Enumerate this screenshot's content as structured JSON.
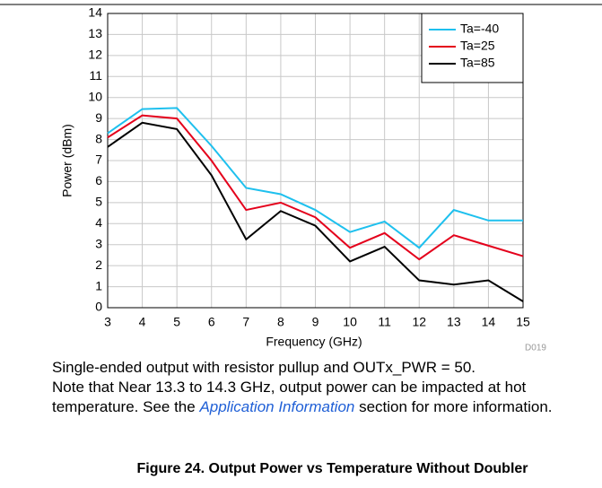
{
  "chart_data": {
    "type": "line",
    "xlabel": "Frequency (GHz)",
    "ylabel": "Power (dBm)",
    "code": "D019",
    "x": [
      3,
      4,
      5,
      6,
      7,
      8,
      9,
      10,
      11,
      12,
      13,
      14,
      15
    ],
    "xlim": [
      3,
      15
    ],
    "xticks": [
      3,
      4,
      5,
      6,
      7,
      8,
      9,
      10,
      11,
      12,
      13,
      14,
      15
    ],
    "ylim": [
      0,
      14
    ],
    "yticks": [
      0,
      1,
      2,
      3,
      4,
      5,
      6,
      7,
      8,
      9,
      10,
      11,
      12,
      13,
      14
    ],
    "grid": true,
    "legend": "upper right",
    "series": [
      {
        "name": "Ta=-40",
        "color": "#1ec0ee",
        "values": [
          8.3,
          9.45,
          9.5,
          7.7,
          5.7,
          5.4,
          4.65,
          3.6,
          4.1,
          2.85,
          4.65,
          4.15,
          4.15
        ]
      },
      {
        "name": "Ta=25",
        "color": "#e4001b",
        "values": [
          8.1,
          9.15,
          9.0,
          7.0,
          4.65,
          5.0,
          4.3,
          2.85,
          3.55,
          2.3,
          3.45,
          2.95,
          2.45
        ]
      },
      {
        "name": "Ta=85",
        "color": "#000000",
        "values": [
          7.65,
          8.8,
          8.5,
          6.3,
          3.25,
          4.6,
          3.9,
          2.2,
          2.9,
          1.3,
          1.1,
          1.3,
          0.3
        ]
      }
    ]
  },
  "caption": {
    "sentence1": "Single-ended output with resistor pullup and OUTx_PWR = 50.",
    "text": "Note that Near 13.3 to 14.3 GHz, output power can be impacted at hot temperature. See the ",
    "link": "Application Information",
    "after": " section for more information."
  },
  "figure_title": "Figure 24. Output Power vs Temperature Without Doubler"
}
